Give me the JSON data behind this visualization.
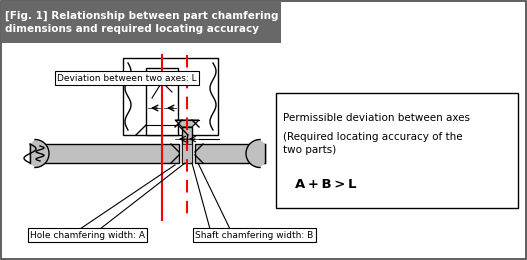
{
  "title": "[Fig. 1] Relationship between part chamfering\ndimensions and required locating accuracy",
  "title_bg": "#686868",
  "title_color": "#ffffff",
  "bg_color": "#ffffff",
  "label_deviation": "Deviation between two axes: L",
  "label_hole": "Hole chamfering width: A",
  "label_shaft": "Shaft chamfering width: B",
  "box_line1": "Permissible deviation between axes",
  "box_line2": "(Required locating accuracy of the\ntwo parts)",
  "box_line3": "A + B > L",
  "gray_light": "#c0c0c0",
  "gray_dark": "#909090",
  "black": "#000000",
  "red": "#ff0000"
}
